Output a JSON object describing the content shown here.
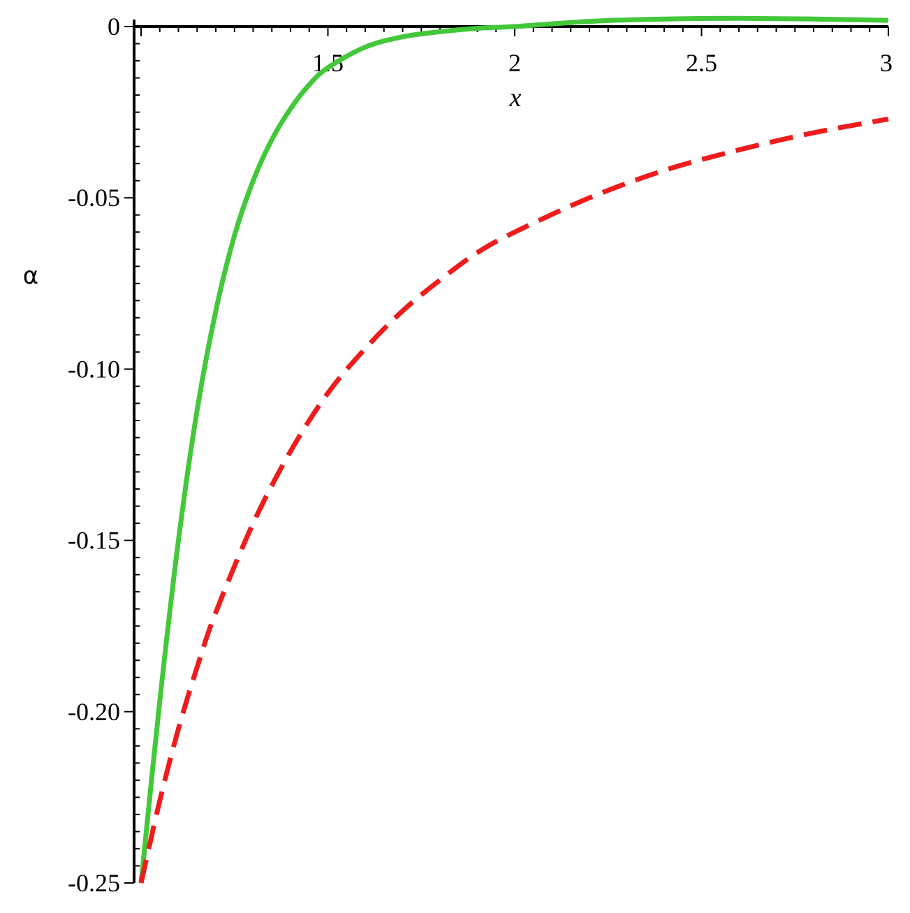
{
  "chart_data": {
    "type": "line",
    "title": "",
    "xlabel": "x",
    "ylabel": "α",
    "xlim": [
      1.0,
      3.0
    ],
    "ylim": [
      -0.25,
      0.0
    ],
    "grid": false,
    "legend": "none",
    "x_ticks": [
      {
        "value": 1.5,
        "label": "1.5"
      },
      {
        "value": 2.0,
        "label": "2"
      },
      {
        "value": 2.5,
        "label": "2.5"
      },
      {
        "value": 3.0,
        "label": "3"
      }
    ],
    "y_ticks": [
      {
        "value": 0.0,
        "label": "0"
      },
      {
        "value": -0.05,
        "label": "-0.05"
      },
      {
        "value": -0.1,
        "label": "-0.10"
      },
      {
        "value": -0.15,
        "label": "-0.15"
      },
      {
        "value": -0.2,
        "label": "-0.20"
      },
      {
        "value": -0.25,
        "label": "-0.25"
      }
    ],
    "series": [
      {
        "style": "solid",
        "color": "#44c83a",
        "x": [
          1.0,
          1.05,
          1.1,
          1.15,
          1.2,
          1.25,
          1.3,
          1.35,
          1.4,
          1.45,
          1.5,
          1.6,
          1.7,
          1.8,
          1.9,
          2.0,
          2.2,
          2.4,
          2.6,
          2.8,
          3.0
        ],
        "y": [
          -0.25,
          -0.197,
          -0.15,
          -0.112,
          -0.083,
          -0.061,
          -0.045,
          -0.033,
          -0.024,
          -0.017,
          -0.012,
          -0.006,
          -0.003,
          -0.0015,
          -0.0005,
          0.0,
          0.0015,
          0.0022,
          0.0024,
          0.0022,
          0.0018
        ]
      },
      {
        "style": "dashed",
        "color": "#ee1c1c",
        "x": [
          1.0,
          1.05,
          1.1,
          1.15,
          1.2,
          1.3,
          1.4,
          1.5,
          1.6,
          1.7,
          1.8,
          1.9,
          2.0,
          2.2,
          2.4,
          2.6,
          2.8,
          3.0
        ],
        "y": [
          -0.25,
          -0.226,
          -0.205,
          -0.187,
          -0.171,
          -0.145,
          -0.124,
          -0.107,
          -0.094,
          -0.083,
          -0.074,
          -0.066,
          -0.06,
          -0.05,
          -0.042,
          -0.036,
          -0.031,
          -0.027
        ]
      }
    ]
  }
}
